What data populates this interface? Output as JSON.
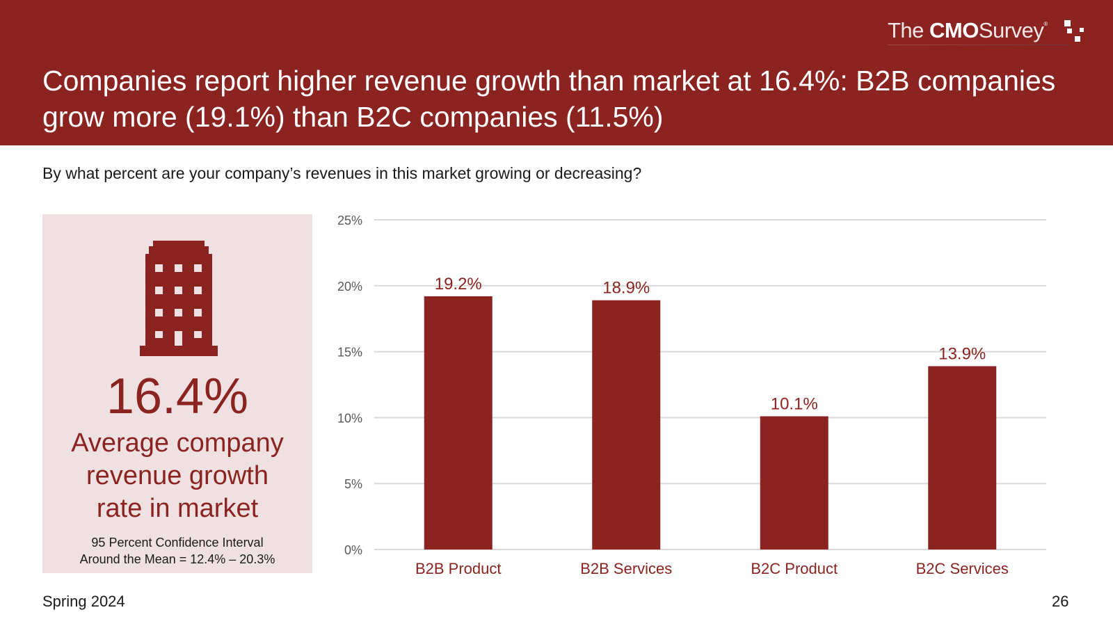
{
  "header": {
    "logo": {
      "the": "The",
      "cmo": "CMO",
      "survey": "Survey",
      "reg": "®"
    },
    "title": "Companies report higher revenue growth than market at 16.4%:  B2B companies grow more (19.1%) than B2C companies (11.5%)"
  },
  "question": "By what percent are your company’s revenues in this market growing or decreasing?",
  "panel": {
    "icon": "building-icon",
    "value": "16.4%",
    "label_prefix": "Average ",
    "label_bold": "company",
    "label_line2": "revenue growth",
    "label_line3": "rate in market",
    "ci_line1": "95 Percent Confidence Interval",
    "ci_line2": "Around the Mean = 12.4% – 20.3%"
  },
  "colors": {
    "brand": "#8b2320",
    "panel": "#efe1e1",
    "grid": "#d9d9d9",
    "axis_text": "#595959"
  },
  "chart_data": {
    "type": "bar",
    "title": "",
    "xlabel": "",
    "ylabel": "",
    "categories": [
      "B2B Product",
      "B2B Services",
      "B2C Product",
      "B2C Services"
    ],
    "values": [
      19.2,
      18.9,
      10.1,
      13.9
    ],
    "data_labels": [
      "19.2%",
      "18.9%",
      "10.1%",
      "13.9%"
    ],
    "ylim": [
      0,
      25
    ],
    "yticks": [
      0,
      5,
      10,
      15,
      20,
      25
    ],
    "ytick_labels": [
      "0%",
      "5%",
      "10%",
      "15%",
      "20%",
      "25%"
    ],
    "grid": true,
    "legend": "none"
  },
  "footer": {
    "date": "Spring 2024",
    "page": "26"
  }
}
